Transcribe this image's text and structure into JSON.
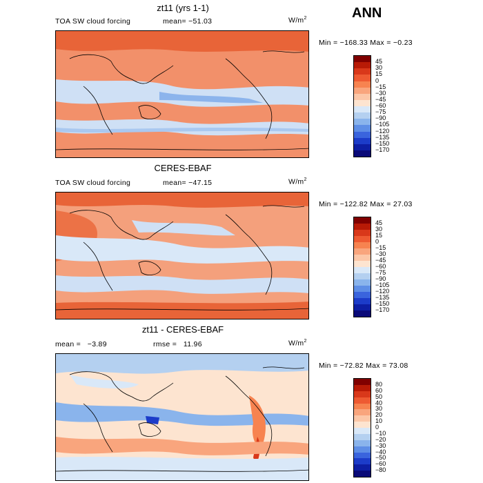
{
  "season": "ANN",
  "panels": [
    {
      "title": "zt11 (yrs 1-1)",
      "left_label": "TOA SW cloud forcing",
      "mid_label": "mean= −51.03",
      "units": "W/m",
      "units_sup": "2",
      "minmax": "Min = −168.33 Max =  −0.23",
      "colorbar": {
        "colors": [
          "#800000",
          "#b81a06",
          "#d9381a",
          "#ee5a32",
          "#f78350",
          "#f9a57d",
          "#fcc7a8",
          "#fde4d0",
          "#d9e8f8",
          "#b4d0f0",
          "#8ab4ec",
          "#5e8ee6",
          "#3a64dd",
          "#1c3cc9",
          "#0d1ea3",
          "#0a0a78"
        ],
        "labels": [
          "45",
          "30",
          "15",
          "0",
          "−15",
          "−30",
          "−45",
          "−60",
          "−75",
          "−90",
          "−105",
          "−120",
          "−135",
          "−150",
          "−170"
        ]
      }
    },
    {
      "title": "CERES-EBAF",
      "left_label": "TOA SW cloud forcing",
      "mid_label": "mean= −47.15",
      "units": "W/m",
      "units_sup": "2",
      "minmax": "Min = −122.82 Max =  27.03",
      "colorbar": {
        "colors": [
          "#800000",
          "#b81a06",
          "#d9381a",
          "#ee5a32",
          "#f78350",
          "#f9a57d",
          "#fcc7a8",
          "#fde4d0",
          "#d9e8f8",
          "#b4d0f0",
          "#8ab4ec",
          "#5e8ee6",
          "#3a64dd",
          "#1c3cc9",
          "#0d1ea3",
          "#0a0a78"
        ],
        "labels": [
          "45",
          "30",
          "15",
          "0",
          "−15",
          "−30",
          "−45",
          "−60",
          "−75",
          "−90",
          "−105",
          "−120",
          "−135",
          "−150",
          "−170"
        ]
      }
    },
    {
      "title": "zt11 - CERES-EBAF",
      "left_label": "mean =   −3.89",
      "mid_label": "rmse =   11.96",
      "units": "W/m",
      "units_sup": "2",
      "minmax": "Min = −72.82 Max =  73.08",
      "colorbar": {
        "colors": [
          "#800000",
          "#b81a06",
          "#d9381a",
          "#ee5a32",
          "#f78350",
          "#f9a57d",
          "#fcc7a8",
          "#fde4d0",
          "#d9e8f8",
          "#b4d0f0",
          "#8ab4ec",
          "#5e8ee6",
          "#3a64dd",
          "#1c3cc9",
          "#0d1ea3",
          "#0a0a78"
        ],
        "labels": [
          "80",
          "60",
          "50",
          "40",
          "30",
          "20",
          "10",
          "0",
          "−10",
          "−20",
          "−30",
          "−40",
          "−50",
          "−60",
          "−80"
        ]
      }
    }
  ]
}
